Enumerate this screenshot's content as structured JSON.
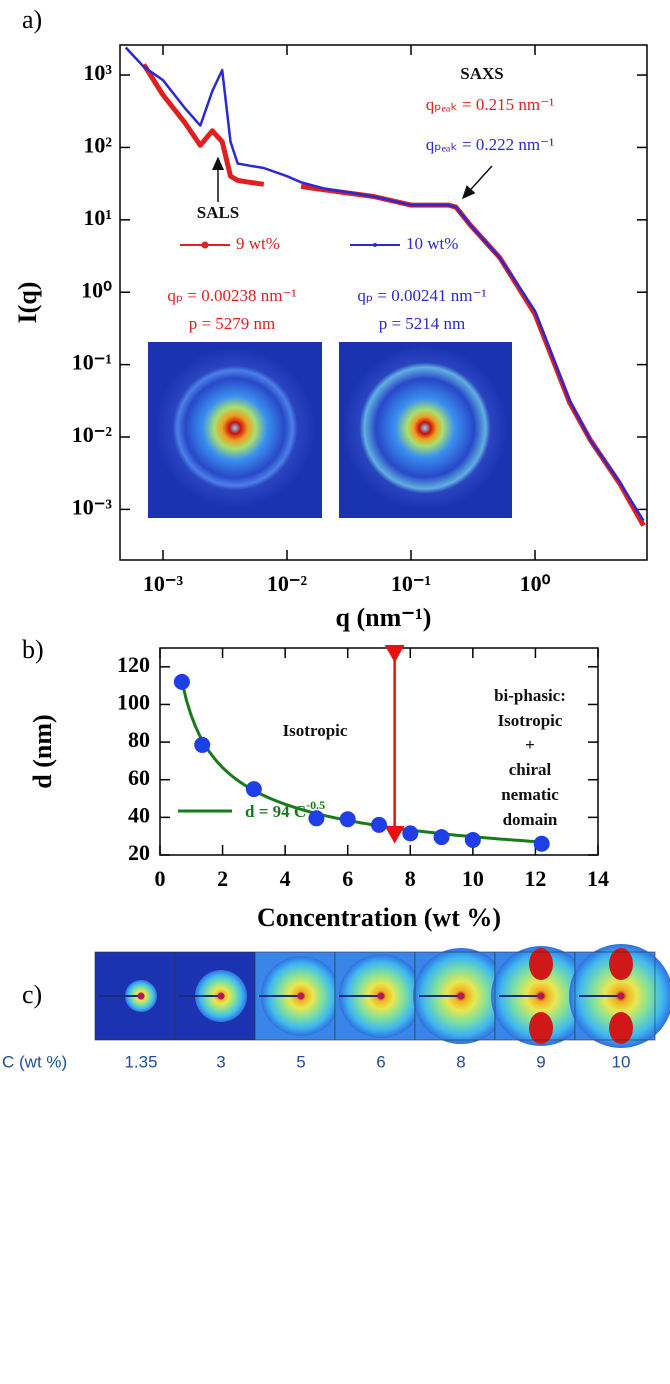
{
  "chart_data": [
    {
      "type": "line",
      "label": "a)",
      "x_label": "q (nm⁻¹)",
      "y_label": "I(q)",
      "log_x": true,
      "log_y": true,
      "x": [
        0.0005,
        0.0007,
        0.001,
        0.0015,
        0.002,
        0.0025,
        0.003,
        0.0035,
        0.004,
        0.005,
        0.0065,
        0.01,
        0.013,
        0.02,
        0.05,
        0.1,
        0.2,
        0.23,
        0.3,
        0.52,
        1,
        1.9,
        2.8,
        4.8,
        7.5
      ],
      "series": [
        {
          "name": "9 wt%",
          "color": "#e02020",
          "values": [
            null,
            1400,
            530,
            220,
            107,
            170,
            120,
            40,
            35,
            33,
            31,
            null,
            29,
            26,
            21,
            16,
            16,
            15,
            8.5,
            3,
            0.5,
            0.03,
            0.009,
            0.0023,
            0.0006
          ]
        },
        {
          "name": "10 wt%",
          "color": "#2a2ad0",
          "values": [
            2400,
            1300,
            850,
            350,
            200,
            600,
            1170,
            120,
            60,
            56,
            52,
            40,
            33,
            27,
            21,
            16,
            16,
            15,
            8.5,
            3,
            0.55,
            0.032,
            0.009,
            0.0024,
            0.0007
          ]
        }
      ],
      "xlim": [
        0.00045,
        8
      ],
      "ylim": [
        0.0002,
        2600
      ],
      "xticks": [
        {
          "value": 0.001,
          "label": "10⁻³"
        },
        {
          "value": 0.01,
          "label": "10⁻²"
        },
        {
          "value": 0.1,
          "label": "10⁻¹"
        },
        {
          "value": 1,
          "label": "10⁰"
        }
      ],
      "yticks": [
        {
          "value": 0.001,
          "label": "10⁻³"
        },
        {
          "value": 0.01,
          "label": "10⁻²"
        },
        {
          "value": 0.1,
          "label": "10⁻¹"
        },
        {
          "value": 1,
          "label": "10⁰"
        },
        {
          "value": 10,
          "label": "10¹"
        },
        {
          "value": 100,
          "label": "10²"
        },
        {
          "value": 1000,
          "label": "10³"
        }
      ],
      "annotations": [
        {
          "text": "SAXS",
          "color": "#111111"
        },
        {
          "text": "qₚₑₐₖ = 0.215 nm⁻¹",
          "color": "#e02020"
        },
        {
          "text": "qₚₑₐₖ = 0.222 nm⁻¹",
          "color": "#2a2ad0"
        },
        {
          "text": "SALS",
          "color": "#111111"
        },
        {
          "text": "qₚ = 0.00238 nm⁻¹",
          "color": "#e02020"
        },
        {
          "text": "p = 5279 nm",
          "color": "#e02020"
        },
        {
          "text": "qₚ = 0.00241 nm⁻¹",
          "color": "#2a2ad0"
        },
        {
          "text": "p = 5214 nm",
          "color": "#2a2ad0"
        }
      ]
    },
    {
      "type": "scatter",
      "label": "b)",
      "x_label": "Concentration (wt %)",
      "y_label": "d (nm)",
      "x": [
        0.7,
        1.35,
        3,
        5,
        6,
        7,
        8,
        9,
        10,
        12.2
      ],
      "values": [
        112,
        78.5,
        55,
        39.5,
        39,
        36,
        31.5,
        29.5,
        28,
        26
      ],
      "color": "#1e3ee6",
      "xlim": [
        0,
        14
      ],
      "ylim": [
        20,
        130
      ],
      "xticks": [
        0,
        2,
        4,
        6,
        8,
        10,
        12,
        14
      ],
      "yticks": [
        20,
        40,
        60,
        80,
        100,
        120
      ],
      "fit": {
        "label": "d = 94 C",
        "label_sup": "-0.5",
        "color": "#1a7a1a",
        "a": 94,
        "exponent": -0.5
      },
      "divider_x": 7.5,
      "divider_color": "#e81010",
      "annotations": [
        "Isotropic",
        "bi-phasic:",
        "Isotropic",
        "+",
        "chiral",
        "nematic",
        "domain"
      ]
    }
  ],
  "panel_c": {
    "label": "c)",
    "axis_label": "C (wt %)",
    "concentrations": [
      1.35,
      3,
      5,
      6,
      8,
      9,
      10
    ]
  }
}
